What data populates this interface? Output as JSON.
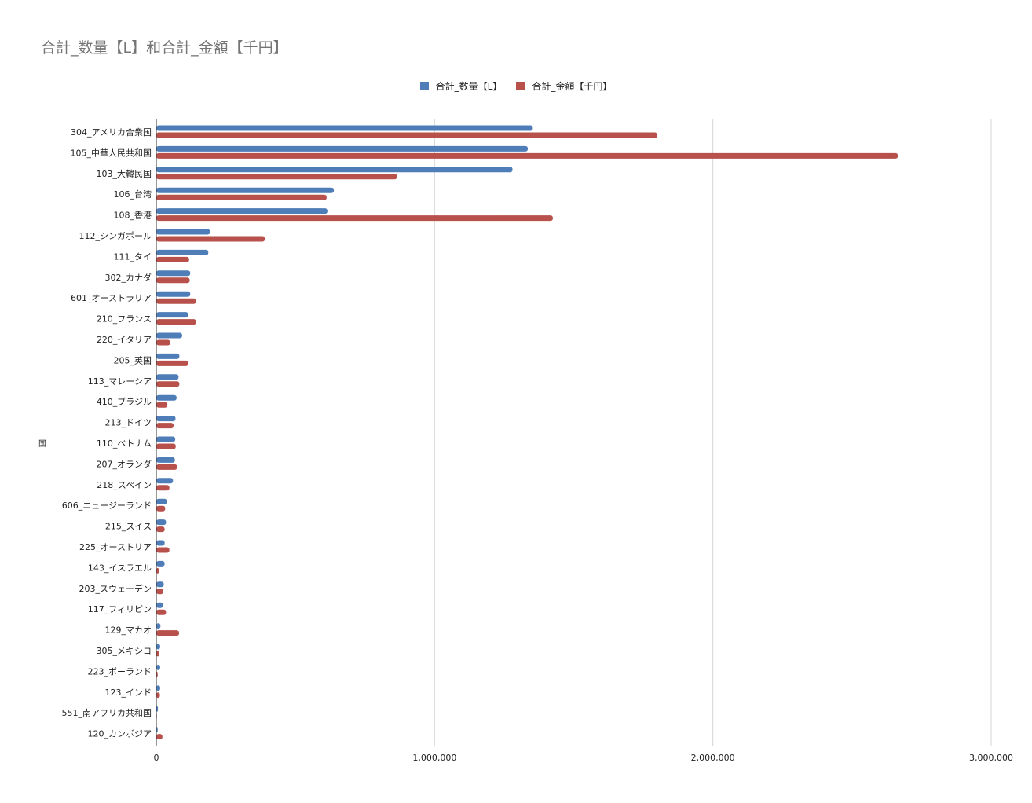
{
  "chart_data": {
    "type": "bar",
    "orientation": "horizontal",
    "title": "合計_数量【L】和合計_金額【千円】",
    "ylabel": "国",
    "legend_position": "top",
    "grid": true,
    "xlim": [
      0,
      3000000
    ],
    "xticks": [
      {
        "value": 0,
        "label": "0"
      },
      {
        "value": 1000000,
        "label": "1,000,000"
      },
      {
        "value": 2000000,
        "label": "2,000,000"
      },
      {
        "value": 3000000,
        "label": "3,000,000"
      }
    ],
    "categories": [
      "304_アメリカ合衆国",
      "105_中華人民共和国",
      "103_大韓民国",
      "106_台湾",
      "108_香港",
      "112_シンガポール",
      "111_タイ",
      "302_カナダ",
      "601_オーストラリア",
      "210_フランス",
      "220_イタリア",
      "205_英国",
      "113_マレーシア",
      "410_ブラジル",
      "213_ドイツ",
      "110_ベトナム",
      "207_オランダ",
      "218_スペイン",
      "606_ニュージーランド",
      "215_スイス",
      "225_オーストリア",
      "143_イスラエル",
      "203_スウェーデン",
      "117_フィリピン",
      "129_マカオ",
      "305_メキシコ",
      "223_ポーランド",
      "123_インド",
      "551_南アフリカ共和国",
      "120_カンボジア"
    ],
    "series": [
      {
        "name": "合計_数量【L】",
        "color": "#4f7db8",
        "values": [
          1353000,
          1335000,
          1280000,
          638000,
          615000,
          193000,
          187000,
          122000,
          122000,
          115000,
          93000,
          83000,
          80000,
          73000,
          69000,
          68000,
          67000,
          60000,
          38000,
          35000,
          30000,
          30000,
          27000,
          24000,
          15000,
          14000,
          14000,
          14000,
          6000,
          5000
        ]
      },
      {
        "name": "合計_金額【千円】",
        "color": "#b8504b",
        "values": [
          1800000,
          2665000,
          865000,
          612000,
          1425000,
          390000,
          118000,
          120000,
          143000,
          143000,
          50000,
          115000,
          83000,
          40000,
          62000,
          70000,
          75000,
          47000,
          32000,
          30000,
          47000,
          10000,
          25000,
          35000,
          82000,
          10000,
          5000,
          13000,
          2000,
          22000
        ]
      }
    ]
  }
}
